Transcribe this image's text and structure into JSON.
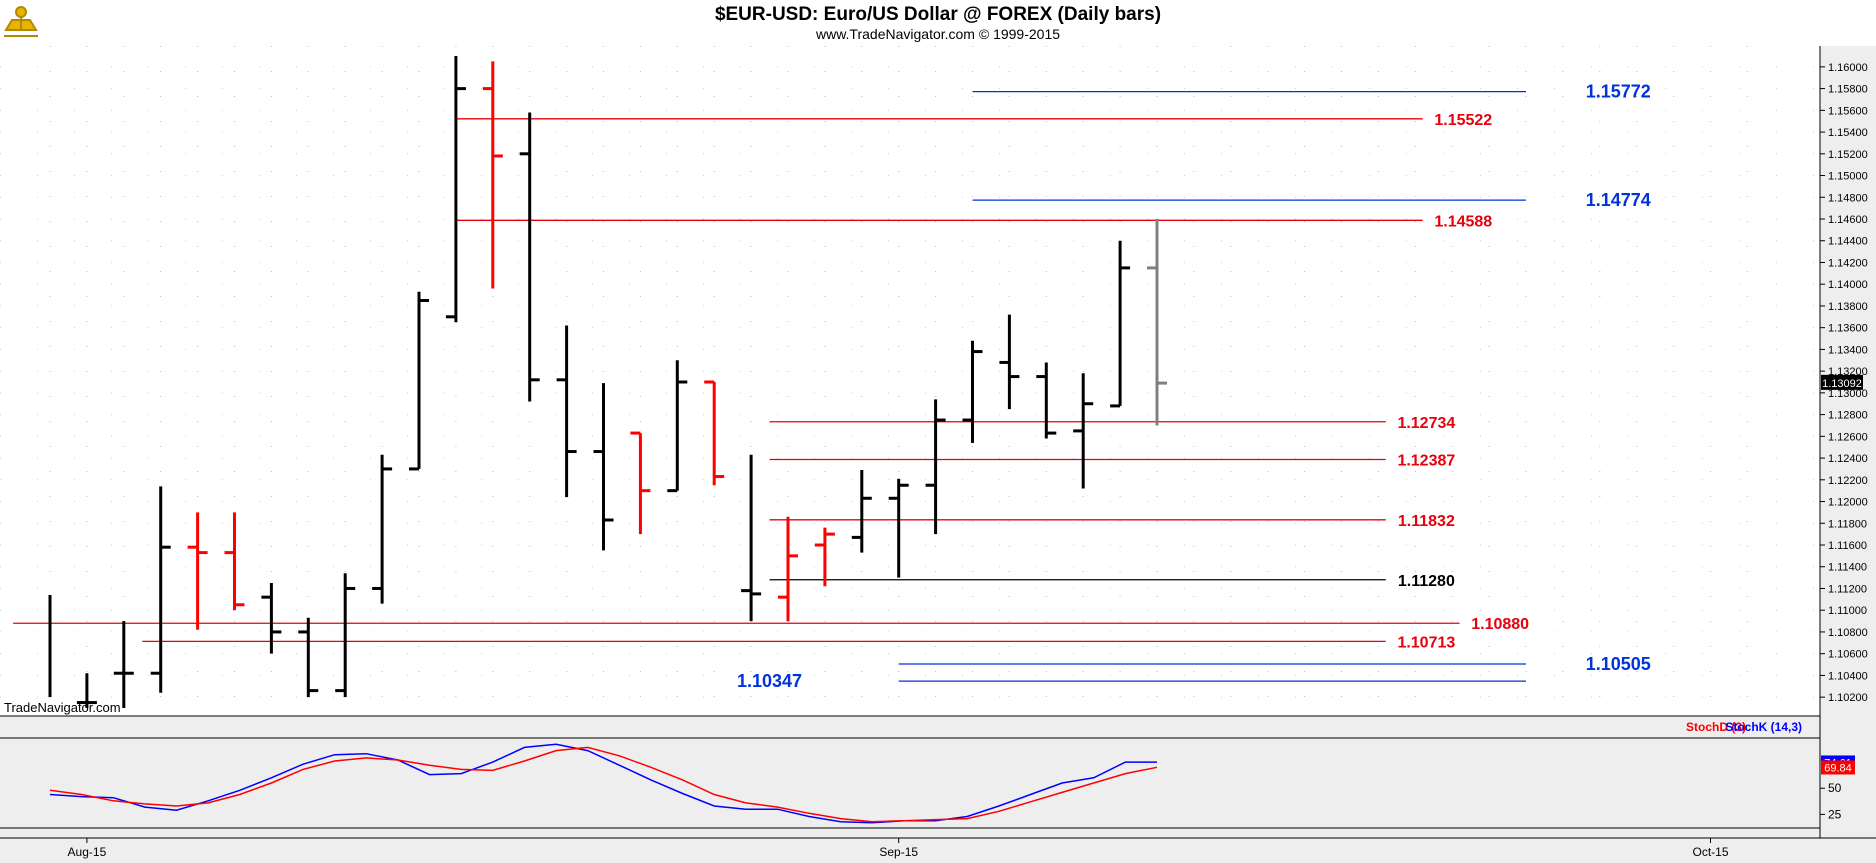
{
  "header": {
    "title": "$EUR-USD:  Euro/US Dollar @ FOREX  (Daily bars)",
    "subtitle": "www.TradeNavigator.com © 1999-2015",
    "watermark": "TradeNavigator.com",
    "logo_icon": "sextant-logo-icon"
  },
  "colors": {
    "background": "#ffffff",
    "chart_bg": "#eeeeee",
    "up_bar": "#000000",
    "down_bar": "#ff0000",
    "current_bar": "#808080",
    "red_level": "#e8000b",
    "blue_level": "#0033dd",
    "black_level": "#000000",
    "stoch_d": "#ff0000",
    "stoch_k": "#0000ff"
  },
  "chart_data": [
    {
      "type": "ohlc",
      "title": "$EUR-USD:  Euro/US Dollar @ FOREX  (Daily bars)",
      "ylim": [
        1.101,
        1.161
      ],
      "y_ticks": [
        "1.10200",
        "1.10400",
        "1.10600",
        "1.10800",
        "1.11000",
        "1.11200",
        "1.11400",
        "1.11600",
        "1.11800",
        "1.12000",
        "1.12200",
        "1.12400",
        "1.12600",
        "1.12800",
        "1.13000",
        "1.13200",
        "1.13400",
        "1.13600",
        "1.13800",
        "1.14000",
        "1.14200",
        "1.14400",
        "1.14600",
        "1.14800",
        "1.15000",
        "1.15200",
        "1.15400",
        "1.15600",
        "1.15800",
        "1.16000"
      ],
      "last_price": "1.13092",
      "x_labels": [
        {
          "label": "Aug-15",
          "bar": 1
        },
        {
          "label": "Sep-15",
          "bar": 23
        },
        {
          "label": "Oct-15",
          "bar": 45
        }
      ],
      "bars": [
        {
          "o": null,
          "h": 1.1114,
          "l": 1.102,
          "c": null,
          "color": "black"
        },
        {
          "o": 1.1015,
          "h": 1.1042,
          "l": 1.101,
          "c": 1.1015,
          "color": "black"
        },
        {
          "o": 1.1042,
          "h": 1.109,
          "l": 1.101,
          "c": 1.1042,
          "color": "black"
        },
        {
          "o": 1.1042,
          "h": 1.1214,
          "l": 1.1024,
          "c": 1.1158,
          "color": "black"
        },
        {
          "o": 1.1158,
          "h": 1.119,
          "l": 1.1082,
          "c": 1.1153,
          "color": "red"
        },
        {
          "o": 1.1153,
          "h": 1.119,
          "l": 1.11,
          "c": 1.1105,
          "color": "red"
        },
        {
          "o": 1.1112,
          "h": 1.1125,
          "l": 1.106,
          "c": 1.108,
          "color": "black"
        },
        {
          "o": 1.108,
          "h": 1.1093,
          "l": 1.102,
          "c": 1.1026,
          "color": "black"
        },
        {
          "o": 1.1026,
          "h": 1.1134,
          "l": 1.102,
          "c": 1.112,
          "color": "black"
        },
        {
          "o": 1.112,
          "h": 1.1243,
          "l": 1.1106,
          "c": 1.123,
          "color": "black"
        },
        {
          "o": 1.123,
          "h": 1.1393,
          "l": 1.123,
          "c": 1.1385,
          "color": "black"
        },
        {
          "o": 1.137,
          "h": 1.161,
          "l": 1.1365,
          "c": 1.158,
          "color": "black"
        },
        {
          "o": 1.158,
          "h": 1.1605,
          "l": 1.1396,
          "c": 1.1518,
          "color": "red"
        },
        {
          "o": 1.152,
          "h": 1.1558,
          "l": 1.1292,
          "c": 1.1312,
          "color": "black"
        },
        {
          "o": 1.1312,
          "h": 1.1362,
          "l": 1.1204,
          "c": 1.1246,
          "color": "black"
        },
        {
          "o": 1.1246,
          "h": 1.1309,
          "l": 1.1155,
          "c": 1.1183,
          "color": "black"
        },
        {
          "o": 1.1263,
          "h": 1.1263,
          "l": 1.117,
          "c": 1.121,
          "color": "red"
        },
        {
          "o": 1.121,
          "h": 1.133,
          "l": 1.121,
          "c": 1.131,
          "color": "black"
        },
        {
          "o": 1.131,
          "h": 1.131,
          "l": 1.1215,
          "c": 1.1223,
          "color": "red"
        },
        {
          "o": 1.1118,
          "h": 1.1243,
          "l": 1.109,
          "c": 1.1115,
          "color": "black"
        },
        {
          "o": 1.1112,
          "h": 1.1186,
          "l": 1.109,
          "c": 1.115,
          "color": "red"
        },
        {
          "o": 1.116,
          "h": 1.1176,
          "l": 1.1122,
          "c": 1.117,
          "color": "red"
        },
        {
          "o": 1.1167,
          "h": 1.1229,
          "l": 1.1153,
          "c": 1.1203,
          "color": "black"
        },
        {
          "o": 1.1203,
          "h": 1.1221,
          "l": 1.113,
          "c": 1.1215,
          "color": "black"
        },
        {
          "o": 1.1215,
          "h": 1.1294,
          "l": 1.117,
          "c": 1.1275,
          "color": "black"
        },
        {
          "o": 1.1275,
          "h": 1.1348,
          "l": 1.1254,
          "c": 1.1338,
          "color": "black"
        },
        {
          "o": 1.1328,
          "h": 1.1372,
          "l": 1.1285,
          "c": 1.1315,
          "color": "black"
        },
        {
          "o": 1.1315,
          "h": 1.1328,
          "l": 1.1258,
          "c": 1.1263,
          "color": "black"
        },
        {
          "o": 1.1265,
          "h": 1.1318,
          "l": 1.1212,
          "c": 1.129,
          "color": "black"
        },
        {
          "o": 1.1288,
          "h": 1.144,
          "l": 1.1288,
          "c": 1.1415,
          "color": "black"
        },
        {
          "o": 1.1415,
          "h": 1.146,
          "l": 1.127,
          "c": 1.1309,
          "color": "gray"
        }
      ],
      "levels": [
        {
          "value": 1.15772,
          "label": "1.15772",
          "color": "blue",
          "from_bar": 25,
          "to_bar": 40,
          "label_bar": 42.5
        },
        {
          "value": 1.15522,
          "label": "1.15522",
          "color": "red",
          "from_bar": 11,
          "to_bar": 37.2,
          "label_bar": 38.3
        },
        {
          "value": 1.14774,
          "label": "1.14774",
          "color": "blue",
          "from_bar": 25,
          "to_bar": 40,
          "label_bar": 42.5
        },
        {
          "value": 1.14588,
          "label": "1.14588",
          "color": "red",
          "from_bar": 11,
          "to_bar": 37.2,
          "label_bar": 38.3
        },
        {
          "value": 1.12734,
          "label": "1.12734",
          "color": "red",
          "from_bar": 19.5,
          "to_bar": 36.2,
          "label_bar": 37.3
        },
        {
          "value": 1.12387,
          "label": "1.12387",
          "color": "red",
          "from_bar": 19.5,
          "to_bar": 36.2,
          "label_bar": 37.3
        },
        {
          "value": 1.11832,
          "label": "1.11832",
          "color": "red",
          "from_bar": 19.5,
          "to_bar": 36.2,
          "label_bar": 37.3
        },
        {
          "value": 1.1128,
          "label": "1.11280",
          "color": "black",
          "from_bar": 19.5,
          "to_bar": 36.2,
          "label_bar": 37.3
        },
        {
          "value": 1.1088,
          "label": "1.10880",
          "color": "red",
          "from_bar": -1,
          "to_bar": 38.2,
          "label_bar": 39.3
        },
        {
          "value": 1.10713,
          "label": "1.10713",
          "color": "red",
          "from_bar": 2.5,
          "to_bar": 36.2,
          "label_bar": 37.3
        },
        {
          "value": 1.10505,
          "label": "1.10505",
          "color": "blue",
          "from_bar": 23,
          "to_bar": 40,
          "label_bar": 42.5
        },
        {
          "value": 1.10347,
          "label": "1.10347",
          "color": "blue",
          "from_bar": 23,
          "to_bar": 40,
          "label_bar": 19.5
        }
      ]
    },
    {
      "type": "line",
      "ylim": [
        12,
        98
      ],
      "y_ticks": [
        "25",
        "50"
      ],
      "legend": [
        {
          "name": "StochD (3)",
          "color": "red"
        },
        {
          "name": "StochK (14,3)",
          "color": "blue"
        }
      ],
      "last_values": {
        "k": "74.61",
        "d": "69.84"
      },
      "series": [
        {
          "name": "StochK (14,3)",
          "color": "blue",
          "values": [
            44,
            42,
            41,
            32,
            29,
            38,
            48,
            60,
            73,
            82,
            83,
            77,
            63,
            64,
            75,
            89,
            92,
            86,
            72,
            58,
            45,
            33,
            30,
            30,
            23,
            18,
            17,
            19,
            19,
            23,
            33,
            44,
            55,
            60,
            75,
            75
          ]
        },
        {
          "name": "StochD (3)",
          "color": "red",
          "values": [
            48,
            44,
            38,
            35,
            33,
            36,
            44,
            55,
            68,
            76,
            79,
            77,
            72,
            68,
            67,
            76,
            86,
            89,
            81,
            70,
            58,
            44,
            36,
            32,
            26,
            21,
            18,
            19,
            20,
            21,
            28,
            37,
            46,
            55,
            64,
            70
          ]
        }
      ]
    }
  ]
}
